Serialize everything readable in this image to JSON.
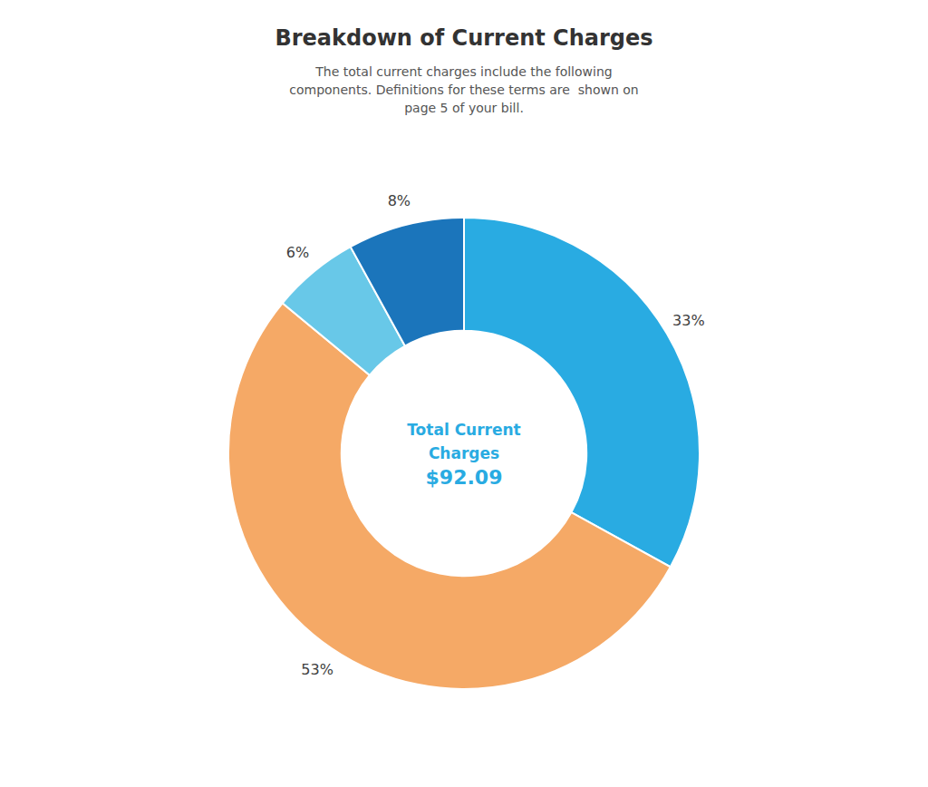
{
  "chart_data": {
    "type": "pie",
    "title": "Breakdown of Current Charges",
    "subtitle": "The total current charges include the following\ncomponents. Definitions for these terms are  shown on\npage 5 of your bill.",
    "values": [
      33,
      53,
      6,
      8
    ],
    "value_labels": [
      "33%",
      "53%",
      "6%",
      "8%"
    ],
    "colors": [
      "#29ABE2",
      "#F5A966",
      "#68C8E8",
      "#1B75BB"
    ],
    "data_labels": true,
    "annotations": [
      "Total Current",
      "Charges",
      "$92.09"
    ]
  }
}
